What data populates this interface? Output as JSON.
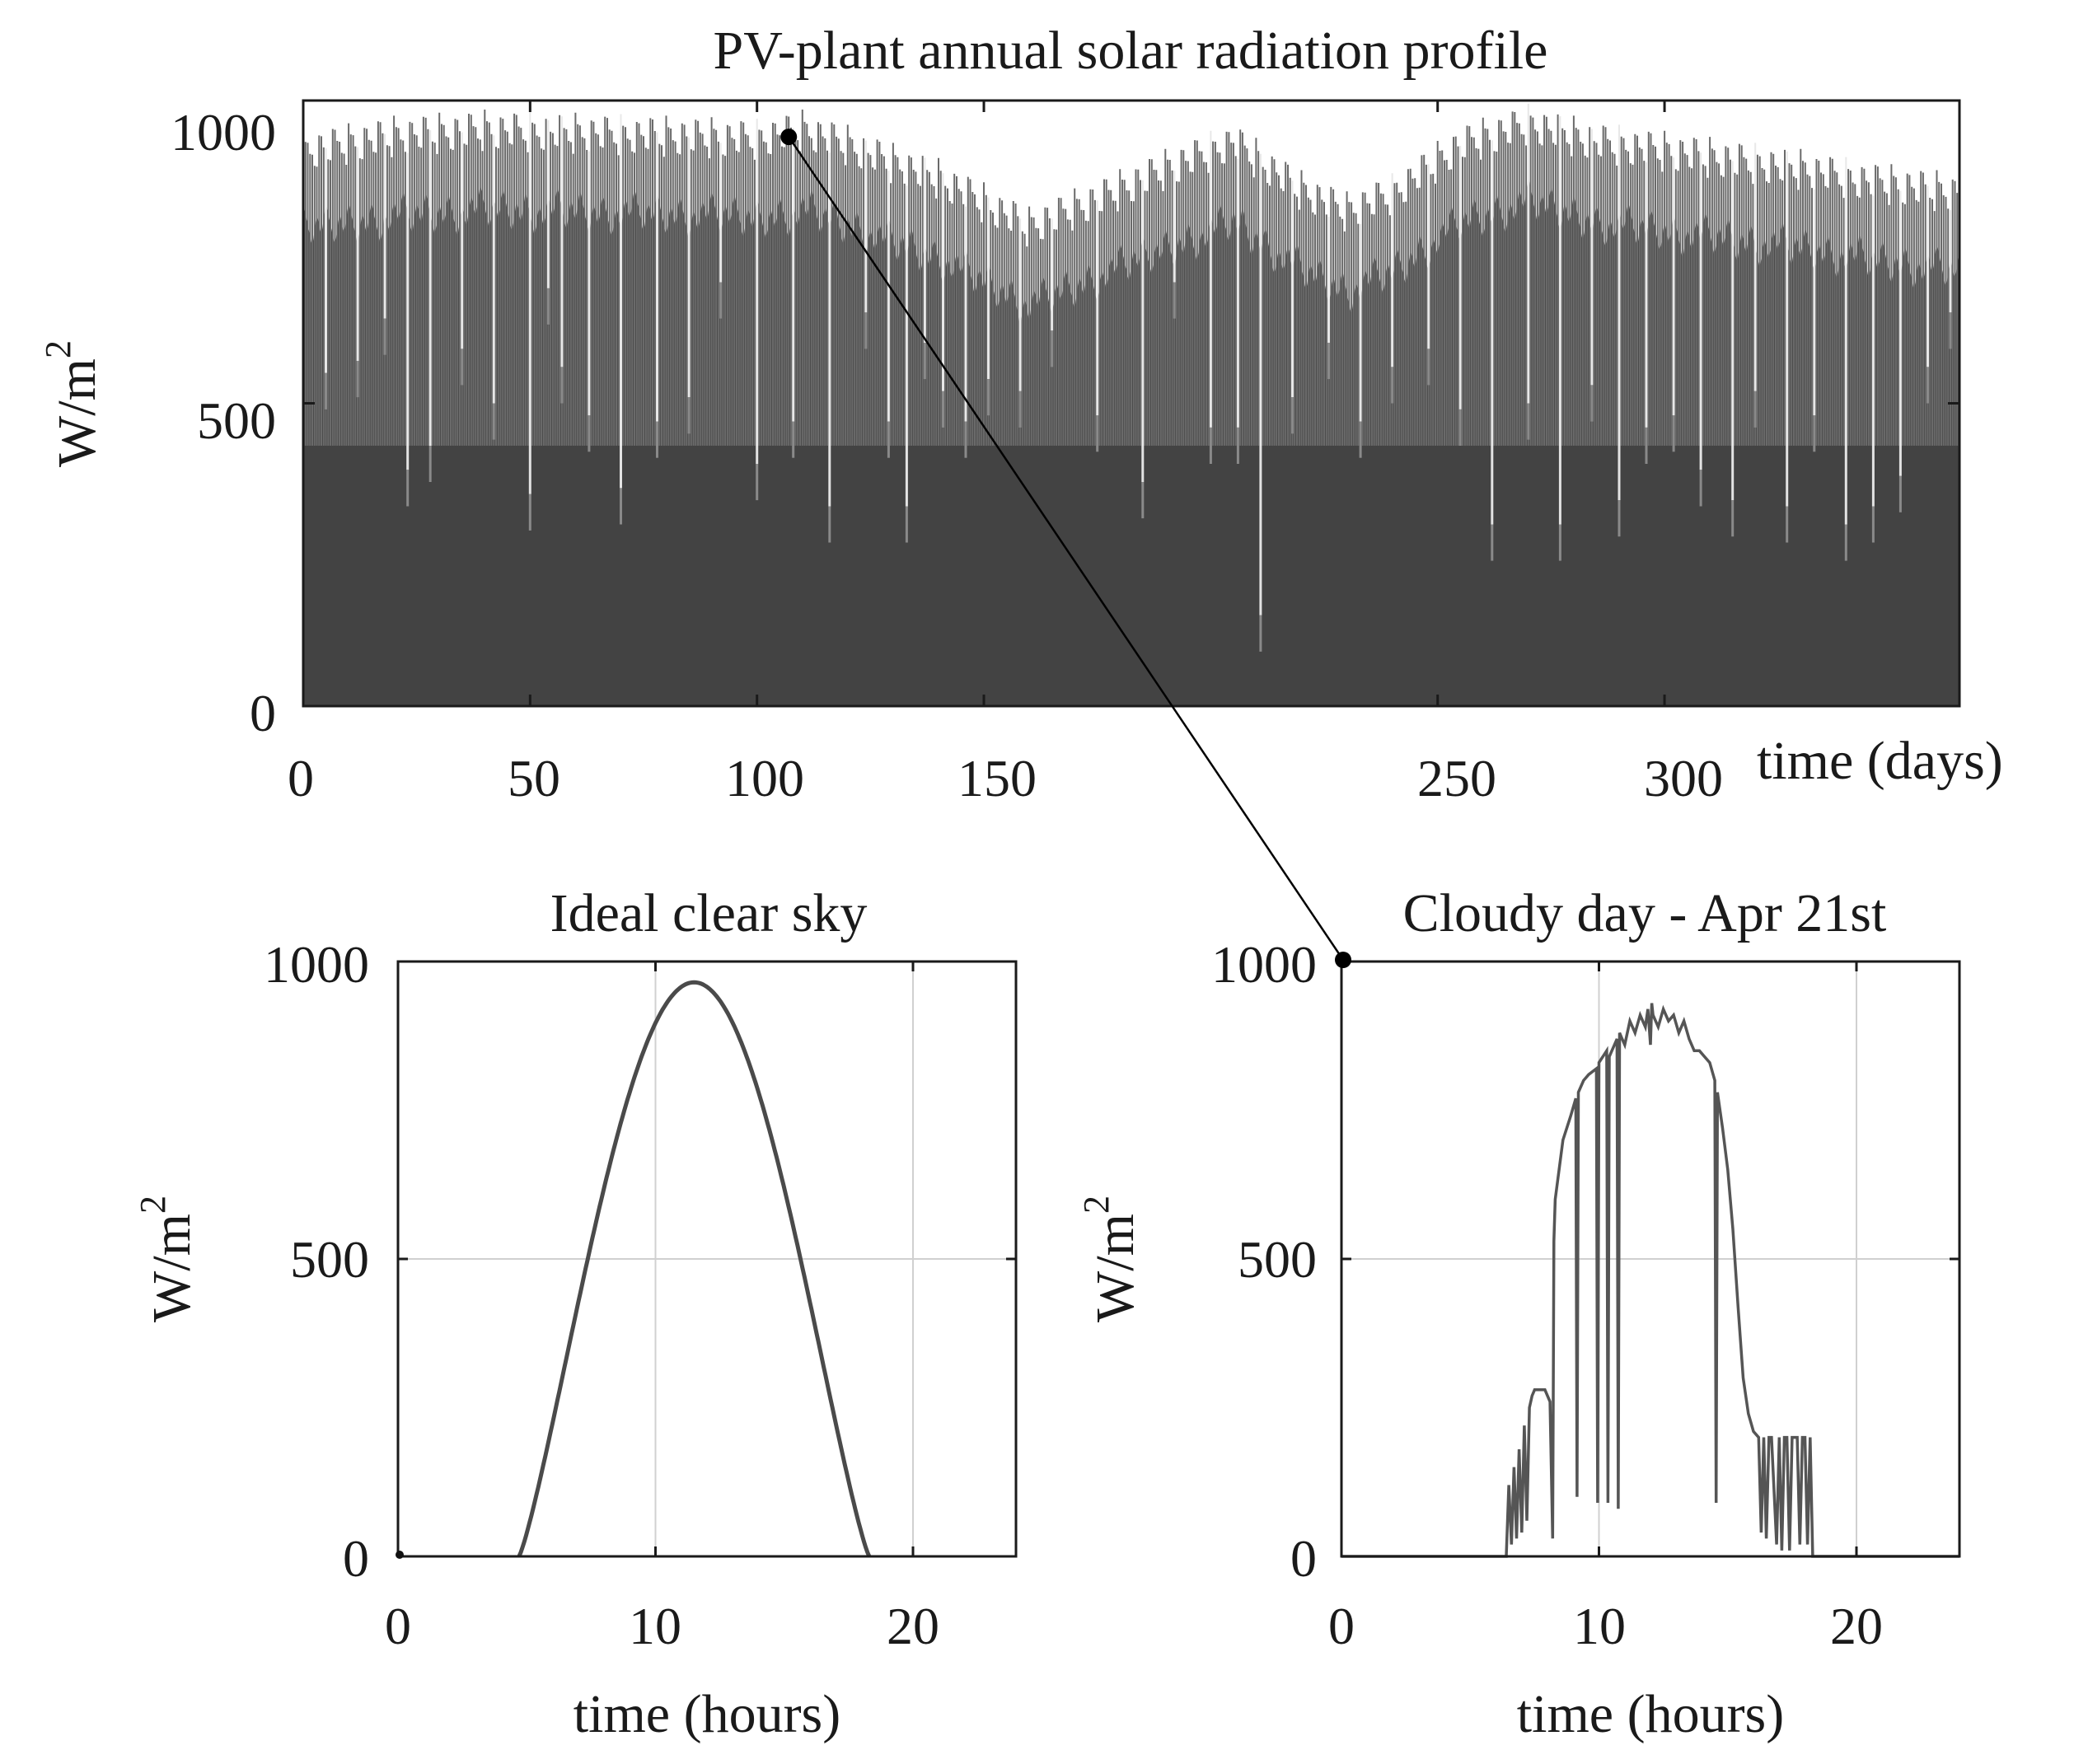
{
  "chart_data": [
    {
      "id": "annual",
      "type": "bar",
      "title": "PV-plant annual solar radiation profile",
      "xlabel": "time (days)",
      "ylabel": "W/m",
      "ylabel_sup": "2",
      "xlim": [
        0,
        365
      ],
      "ylim": [
        0,
        1000
      ],
      "xticks": [
        0,
        50,
        100,
        150,
        250,
        300
      ],
      "xtick_labels": [
        "0",
        "50",
        "100",
        "150",
        "250",
        "300"
      ],
      "yticks": [
        0,
        500,
        1000
      ],
      "ytick_labels": [
        "0",
        "500",
        "1000"
      ],
      "grid": false,
      "n_days": 365,
      "upper_envelope": [
        [
          0,
          950
        ],
        [
          20,
          975
        ],
        [
          40,
          985
        ],
        [
          60,
          980
        ],
        [
          80,
          975
        ],
        [
          100,
          970
        ],
        [
          110,
          985
        ],
        [
          120,
          960
        ],
        [
          130,
          930
        ],
        [
          140,
          905
        ],
        [
          150,
          865
        ],
        [
          160,
          825
        ],
        [
          175,
          870
        ],
        [
          190,
          920
        ],
        [
          205,
          965
        ],
        [
          220,
          885
        ],
        [
          230,
          850
        ],
        [
          240,
          880
        ],
        [
          255,
          960
        ],
        [
          270,
          995
        ],
        [
          285,
          965
        ],
        [
          300,
          950
        ],
        [
          315,
          935
        ],
        [
          330,
          920
        ],
        [
          345,
          900
        ],
        [
          365,
          880
        ]
      ],
      "dips": [
        [
          5,
          550
        ],
        [
          12,
          570
        ],
        [
          18,
          640
        ],
        [
          23,
          390
        ],
        [
          28,
          430
        ],
        [
          35,
          590
        ],
        [
          42,
          500
        ],
        [
          50,
          350
        ],
        [
          54,
          690
        ],
        [
          57,
          560
        ],
        [
          63,
          480
        ],
        [
          70,
          360
        ],
        [
          78,
          470
        ],
        [
          85,
          510
        ],
        [
          92,
          700
        ],
        [
          100,
          400
        ],
        [
          108,
          470
        ],
        [
          116,
          330
        ],
        [
          124,
          650
        ],
        [
          129,
          470
        ],
        [
          133,
          330
        ],
        [
          137,
          600
        ],
        [
          141,
          520
        ],
        [
          146,
          470
        ],
        [
          151,
          540
        ],
        [
          158,
          520
        ],
        [
          165,
          620
        ],
        [
          175,
          480
        ],
        [
          185,
          370
        ],
        [
          192,
          700
        ],
        [
          200,
          460
        ],
        [
          206,
          460
        ],
        [
          211,
          150
        ],
        [
          218,
          510
        ],
        [
          226,
          600
        ],
        [
          233,
          470
        ],
        [
          240,
          560
        ],
        [
          248,
          590
        ],
        [
          255,
          490
        ],
        [
          262,
          300
        ],
        [
          270,
          500
        ],
        [
          277,
          300
        ],
        [
          284,
          530
        ],
        [
          290,
          340
        ],
        [
          296,
          460
        ],
        [
          302,
          480
        ],
        [
          308,
          390
        ],
        [
          315,
          340
        ],
        [
          320,
          520
        ],
        [
          327,
          330
        ],
        [
          333,
          480
        ],
        [
          340,
          300
        ],
        [
          346,
          330
        ],
        [
          352,
          380
        ],
        [
          358,
          560
        ],
        [
          363,
          650
        ]
      ],
      "connector": {
        "from_day": 107,
        "from_value": 940,
        "to": "cloudy.origin"
      }
    },
    {
      "id": "clear",
      "type": "line",
      "title": "Ideal clear sky",
      "xlabel": "time (hours)",
      "ylabel": "W/m",
      "ylabel_sup": "2",
      "xlim": [
        0,
        24
      ],
      "ylim": [
        0,
        1000
      ],
      "xticks": [
        0,
        10,
        20
      ],
      "xtick_labels": [
        "0",
        "10",
        "20"
      ],
      "yticks": [
        0,
        500,
        1000
      ],
      "ytick_labels": [
        "0",
        "500",
        "1000"
      ],
      "grid": true,
      "series": [
        {
          "name": "clear sky",
          "sunrise": 4.7,
          "sunset": 18.3,
          "peak": 965
        }
      ]
    },
    {
      "id": "cloudy",
      "type": "line",
      "title": "Cloudy day - Apr 21st",
      "xlabel": "time (hours)",
      "ylabel": "W/m",
      "ylabel_sup": "2",
      "xlim": [
        0,
        24
      ],
      "ylim": [
        0,
        1000
      ],
      "xticks": [
        0,
        10,
        20
      ],
      "xtick_labels": [
        "0",
        "10",
        "20"
      ],
      "yticks": [
        0,
        500,
        1000
      ],
      "ytick_labels": [
        "0",
        "500",
        "1000"
      ],
      "grid": true,
      "series": [
        {
          "name": "Apr 21st",
          "x": [
            0,
            6.4,
            6.5,
            6.6,
            6.7,
            6.8,
            6.9,
            7.0,
            7.1,
            7.2,
            7.3,
            7.4,
            7.5,
            7.7,
            7.9,
            8.1,
            8.2,
            8.25,
            8.3,
            8.6,
            8.9,
            9.1,
            9.15,
            9.2,
            9.4,
            9.6,
            9.9,
            9.95,
            10.0,
            10.3,
            10.35,
            10.4,
            10.6,
            10.7,
            10.75,
            10.8,
            10.9,
            11.0,
            11.2,
            11.4,
            11.6,
            11.8,
            11.9,
            12.0,
            12.05,
            12.1,
            12.3,
            12.5,
            12.7,
            12.9,
            13.1,
            13.3,
            13.5,
            13.7,
            13.9,
            14.1,
            14.3,
            14.5,
            14.55,
            14.6,
            14.8,
            15.0,
            15.2,
            15.4,
            15.6,
            15.8,
            16.0,
            16.2,
            16.3,
            16.4,
            16.5,
            16.6,
            16.7,
            16.9,
            17.0,
            17.1,
            17.2,
            17.3,
            17.4,
            17.5,
            17.6,
            17.7,
            17.8,
            17.9,
            18.0,
            18.1,
            18.2,
            18.3,
            18.4,
            18.5,
            24
          ],
          "y": [
            0,
            0,
            120,
            20,
            150,
            30,
            180,
            40,
            220,
            60,
            250,
            270,
            280,
            280,
            280,
            260,
            30,
            530,
            600,
            700,
            740,
            770,
            100,
            780,
            800,
            810,
            820,
            90,
            830,
            850,
            90,
            840,
            860,
            870,
            80,
            880,
            870,
            860,
            900,
            880,
            910,
            890,
            920,
            860,
            930,
            910,
            890,
            920,
            900,
            910,
            880,
            900,
            870,
            850,
            850,
            840,
            830,
            800,
            90,
            780,
            720,
            650,
            550,
            420,
            300,
            240,
            210,
            200,
            40,
            200,
            30,
            200,
            200,
            20,
            200,
            10,
            200,
            200,
            10,
            200,
            200,
            200,
            20,
            200,
            200,
            20,
            200,
            0,
            0,
            0,
            0
          ]
        }
      ]
    }
  ]
}
